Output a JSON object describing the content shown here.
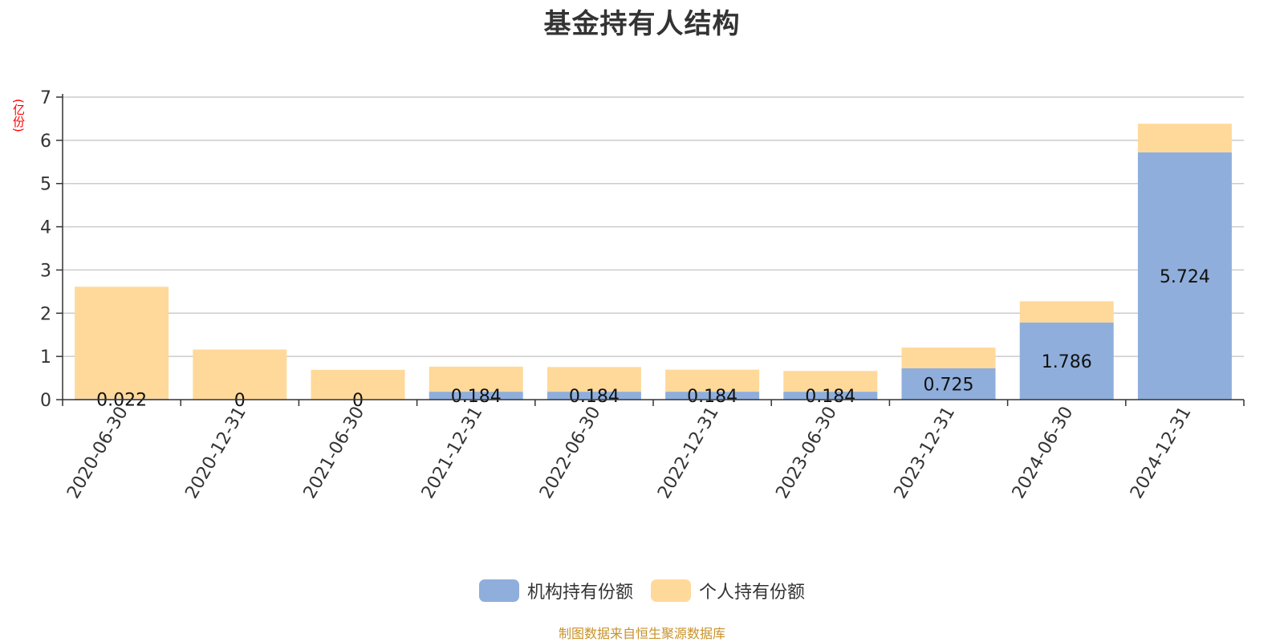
{
  "chart_data": {
    "type": "bar",
    "stacked": true,
    "title": "基金持有人结构",
    "y_unit": "(亿份)",
    "categories": [
      "2020-06-30",
      "2020-12-31",
      "2021-06-30",
      "2021-12-31",
      "2022-06-30",
      "2022-12-31",
      "2023-06-30",
      "2023-12-31",
      "2024-06-30",
      "2024-12-31"
    ],
    "series": [
      {
        "name": "机构持有份额",
        "color": "#8faedb",
        "values": [
          0.022,
          0,
          0,
          0.184,
          0.184,
          0.184,
          0.184,
          0.725,
          1.786,
          5.724
        ],
        "labels": [
          "0.022",
          "0",
          "0",
          "0.184",
          "0.184",
          "0.184",
          "0.184",
          "0.725",
          "1.786",
          "5.724"
        ]
      },
      {
        "name": "个人持有份额",
        "color": "#ffd99a",
        "values": [
          2.59,
          1.16,
          0.69,
          0.58,
          0.57,
          0.51,
          0.48,
          0.48,
          0.49,
          0.66
        ]
      }
    ],
    "ylim": [
      0,
      7
    ],
    "yticks": [
      "0",
      "1",
      "2",
      "3",
      "4",
      "5",
      "6",
      "7"
    ],
    "grid": true,
    "legend_position": "bottom-center"
  },
  "footer": {
    "source": "制图数据来自恒生聚源数据库"
  }
}
